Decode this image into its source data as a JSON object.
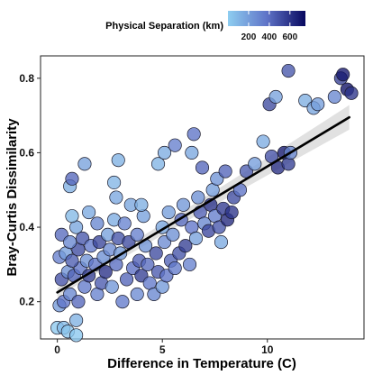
{
  "chart_data": {
    "type": "scatter",
    "xlabel": "Difference in Temperature (C)",
    "ylabel": "Bray-Curtis Dissimilarity",
    "xlim": [
      -0.8,
      14.6
    ],
    "ylim": [
      0.1,
      0.86
    ],
    "xticks": [
      0,
      5,
      10
    ],
    "yticks": [
      0.2,
      0.4,
      0.6,
      0.8
    ],
    "grid": false,
    "legend": {
      "title": "Physical Separation (km)",
      "position": "top",
      "ticks": [
        200,
        400,
        600
      ],
      "range": [
        0,
        750
      ],
      "colors": [
        "#8ecdf0",
        "#5f74c8",
        "#08085f"
      ]
    },
    "trend": {
      "type": "linear",
      "x": [
        0,
        13.9
      ],
      "y": [
        0.225,
        0.695
      ],
      "ci_halfwidth_start": 0.012,
      "ci_halfwidth_end": 0.033
    },
    "series": [
      {
        "marker": "circle",
        "points": [
          {
            "x": 0.0,
            "y": 0.13,
            "d": 30
          },
          {
            "x": 0.3,
            "y": 0.13,
            "d": 70
          },
          {
            "x": 0.5,
            "y": 0.12,
            "d": 40
          },
          {
            "x": 0.9,
            "y": 0.11,
            "d": 20
          },
          {
            "x": 0.9,
            "y": 0.15,
            "d": 120
          },
          {
            "x": 0.1,
            "y": 0.19,
            "d": 220
          },
          {
            "x": 0.3,
            "y": 0.2,
            "d": 380
          },
          {
            "x": 0.6,
            "y": 0.22,
            "d": 300
          },
          {
            "x": 1.0,
            "y": 0.2,
            "d": 420
          },
          {
            "x": 1.3,
            "y": 0.24,
            "d": 350
          },
          {
            "x": 0.2,
            "y": 0.26,
            "d": 500
          },
          {
            "x": 0.5,
            "y": 0.28,
            "d": 260
          },
          {
            "x": 0.8,
            "y": 0.27,
            "d": 440
          },
          {
            "x": 1.1,
            "y": 0.29,
            "d": 380
          },
          {
            "x": 1.5,
            "y": 0.27,
            "d": 560
          },
          {
            "x": 0.1,
            "y": 0.32,
            "d": 330
          },
          {
            "x": 0.4,
            "y": 0.33,
            "d": 200
          },
          {
            "x": 0.7,
            "y": 0.31,
            "d": 460
          },
          {
            "x": 1.0,
            "y": 0.34,
            "d": 520
          },
          {
            "x": 1.4,
            "y": 0.31,
            "d": 250
          },
          {
            "x": 0.2,
            "y": 0.38,
            "d": 410
          },
          {
            "x": 0.6,
            "y": 0.36,
            "d": 300
          },
          {
            "x": 0.9,
            "y": 0.4,
            "d": 170
          },
          {
            "x": 1.2,
            "y": 0.37,
            "d": 480
          },
          {
            "x": 1.6,
            "y": 0.35,
            "d": 360
          },
          {
            "x": 0.7,
            "y": 0.43,
            "d": 90
          },
          {
            "x": 1.5,
            "y": 0.44,
            "d": 150
          },
          {
            "x": 0.6,
            "y": 0.51,
            "d": 130
          },
          {
            "x": 0.7,
            "y": 0.53,
            "d": 420
          },
          {
            "x": 1.3,
            "y": 0.57,
            "d": 180
          },
          {
            "x": 1.9,
            "y": 0.22,
            "d": 320
          },
          {
            "x": 2.1,
            "y": 0.25,
            "d": 470
          },
          {
            "x": 1.8,
            "y": 0.3,
            "d": 380
          },
          {
            "x": 2.2,
            "y": 0.32,
            "d": 260
          },
          {
            "x": 2.0,
            "y": 0.36,
            "d": 540
          },
          {
            "x": 2.4,
            "y": 0.38,
            "d": 190
          },
          {
            "x": 1.9,
            "y": 0.41,
            "d": 300
          },
          {
            "x": 2.3,
            "y": 0.28,
            "d": 610
          },
          {
            "x": 2.6,
            "y": 0.24,
            "d": 230
          },
          {
            "x": 2.8,
            "y": 0.3,
            "d": 400
          },
          {
            "x": 2.5,
            "y": 0.34,
            "d": 280
          },
          {
            "x": 2.9,
            "y": 0.37,
            "d": 490
          },
          {
            "x": 2.7,
            "y": 0.42,
            "d": 140
          },
          {
            "x": 2.8,
            "y": 0.48,
            "d": 160
          },
          {
            "x": 2.7,
            "y": 0.52,
            "d": 100
          },
          {
            "x": 2.9,
            "y": 0.58,
            "d": 120
          },
          {
            "x": 3.1,
            "y": 0.2,
            "d": 350
          },
          {
            "x": 3.3,
            "y": 0.26,
            "d": 430
          },
          {
            "x": 3.0,
            "y": 0.33,
            "d": 210
          },
          {
            "x": 3.4,
            "y": 0.36,
            "d": 520
          },
          {
            "x": 3.2,
            "y": 0.41,
            "d": 310
          },
          {
            "x": 3.6,
            "y": 0.29,
            "d": 390
          },
          {
            "x": 3.5,
            "y": 0.46,
            "d": 170
          },
          {
            "x": 3.8,
            "y": 0.22,
            "d": 280
          },
          {
            "x": 3.9,
            "y": 0.31,
            "d": 450
          },
          {
            "x": 4.0,
            "y": 0.27,
            "d": 560
          },
          {
            "x": 4.2,
            "y": 0.35,
            "d": 240
          },
          {
            "x": 3.8,
            "y": 0.38,
            "d": 330
          },
          {
            "x": 4.1,
            "y": 0.43,
            "d": 190
          },
          {
            "x": 4.3,
            "y": 0.3,
            "d": 410
          },
          {
            "x": 4.4,
            "y": 0.25,
            "d": 360
          },
          {
            "x": 4.0,
            "y": 0.46,
            "d": 130
          },
          {
            "x": 4.6,
            "y": 0.22,
            "d": 300
          },
          {
            "x": 4.8,
            "y": 0.28,
            "d": 470
          },
          {
            "x": 5.0,
            "y": 0.24,
            "d": 220
          },
          {
            "x": 5.2,
            "y": 0.27,
            "d": 380
          },
          {
            "x": 4.7,
            "y": 0.33,
            "d": 520
          },
          {
            "x": 5.1,
            "y": 0.36,
            "d": 280
          },
          {
            "x": 5.4,
            "y": 0.31,
            "d": 440
          },
          {
            "x": 5.0,
            "y": 0.4,
            "d": 160
          },
          {
            "x": 5.3,
            "y": 0.44,
            "d": 200
          },
          {
            "x": 5.6,
            "y": 0.29,
            "d": 350
          },
          {
            "x": 5.8,
            "y": 0.33,
            "d": 490
          },
          {
            "x": 5.5,
            "y": 0.38,
            "d": 260
          },
          {
            "x": 5.9,
            "y": 0.42,
            "d": 410
          },
          {
            "x": 6.1,
            "y": 0.35,
            "d": 560
          },
          {
            "x": 6.3,
            "y": 0.3,
            "d": 320
          },
          {
            "x": 6.0,
            "y": 0.46,
            "d": 230
          },
          {
            "x": 6.4,
            "y": 0.4,
            "d": 370
          },
          {
            "x": 6.6,
            "y": 0.37,
            "d": 180
          },
          {
            "x": 6.8,
            "y": 0.44,
            "d": 450
          },
          {
            "x": 7.0,
            "y": 0.41,
            "d": 300
          },
          {
            "x": 7.2,
            "y": 0.39,
            "d": 530
          },
          {
            "x": 6.7,
            "y": 0.48,
            "d": 260
          },
          {
            "x": 7.3,
            "y": 0.46,
            "d": 610
          },
          {
            "x": 7.5,
            "y": 0.43,
            "d": 340
          },
          {
            "x": 7.7,
            "y": 0.4,
            "d": 480
          },
          {
            "x": 7.9,
            "y": 0.45,
            "d": 580
          },
          {
            "x": 8.1,
            "y": 0.42,
            "d": 640
          },
          {
            "x": 7.4,
            "y": 0.5,
            "d": 200
          },
          {
            "x": 7.8,
            "y": 0.36,
            "d": 150
          },
          {
            "x": 8.3,
            "y": 0.44,
            "d": 600
          },
          {
            "x": 8.4,
            "y": 0.48,
            "d": 520
          },
          {
            "x": 7.6,
            "y": 0.53,
            "d": 240
          },
          {
            "x": 8.0,
            "y": 0.55,
            "d": 430
          },
          {
            "x": 4.8,
            "y": 0.57,
            "d": 110
          },
          {
            "x": 5.1,
            "y": 0.6,
            "d": 140
          },
          {
            "x": 5.6,
            "y": 0.62,
            "d": 330
          },
          {
            "x": 6.5,
            "y": 0.65,
            "d": 380
          },
          {
            "x": 6.4,
            "y": 0.6,
            "d": 160
          },
          {
            "x": 6.9,
            "y": 0.56,
            "d": 420
          },
          {
            "x": 8.7,
            "y": 0.5,
            "d": 380
          },
          {
            "x": 9.0,
            "y": 0.55,
            "d": 460
          },
          {
            "x": 9.4,
            "y": 0.57,
            "d": 200
          },
          {
            "x": 10.2,
            "y": 0.59,
            "d": 500
          },
          {
            "x": 10.5,
            "y": 0.56,
            "d": 620
          },
          {
            "x": 10.8,
            "y": 0.6,
            "d": 680
          },
          {
            "x": 11.0,
            "y": 0.57,
            "d": 560
          },
          {
            "x": 11.1,
            "y": 0.6,
            "d": 300
          },
          {
            "x": 9.8,
            "y": 0.63,
            "d": 140
          },
          {
            "x": 10.1,
            "y": 0.73,
            "d": 520
          },
          {
            "x": 10.4,
            "y": 0.75,
            "d": 180
          },
          {
            "x": 11.0,
            "y": 0.82,
            "d": 480
          },
          {
            "x": 11.8,
            "y": 0.74,
            "d": 130
          },
          {
            "x": 12.2,
            "y": 0.72,
            "d": 170
          },
          {
            "x": 12.4,
            "y": 0.73,
            "d": 200
          },
          {
            "x": 13.2,
            "y": 0.75,
            "d": 300
          },
          {
            "x": 13.5,
            "y": 0.8,
            "d": 560
          },
          {
            "x": 13.6,
            "y": 0.81,
            "d": 700
          },
          {
            "x": 13.8,
            "y": 0.77,
            "d": 720
          },
          {
            "x": 14.0,
            "y": 0.76,
            "d": 600
          }
        ]
      }
    ]
  }
}
